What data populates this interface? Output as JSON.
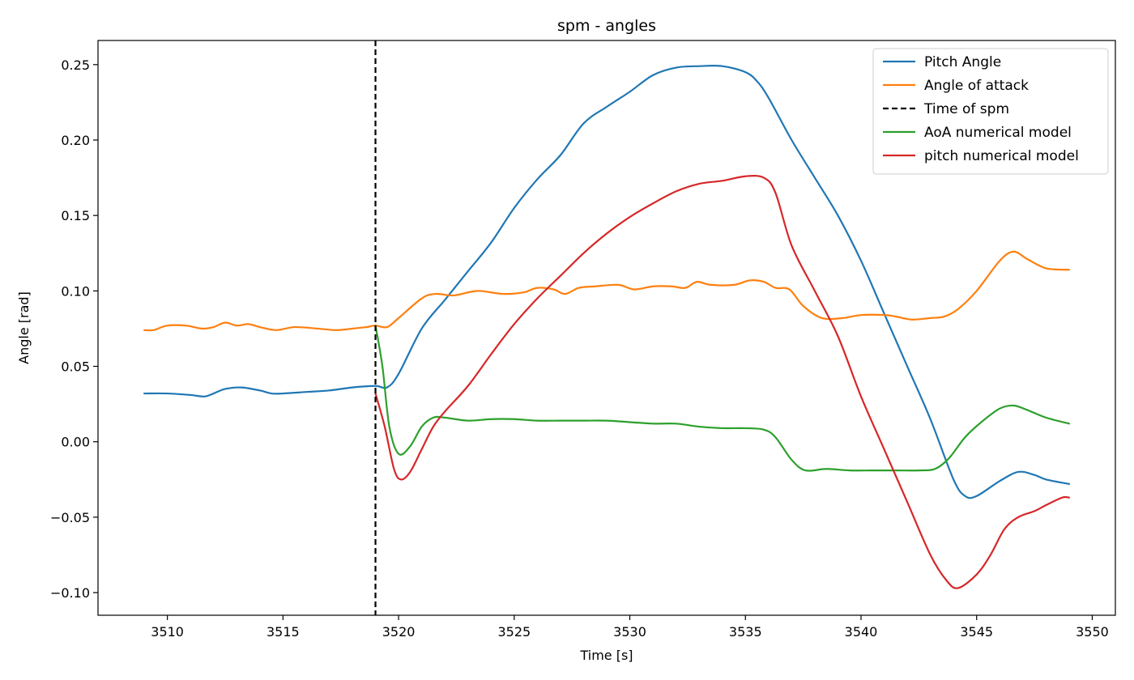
{
  "chart_data": {
    "type": "line",
    "title": "spm - angles",
    "xlabel": "Time [s]",
    "ylabel": "Angle [rad]",
    "xlim": [
      3507,
      3551
    ],
    "ylim": [
      -0.115,
      0.266
    ],
    "xticks": [
      3510,
      3515,
      3520,
      3525,
      3530,
      3535,
      3540,
      3545,
      3550
    ],
    "yticks": [
      -0.1,
      -0.05,
      0.0,
      0.05,
      0.1,
      0.15,
      0.2,
      0.25
    ],
    "xtick_labels": [
      "3510",
      "3515",
      "3520",
      "3525",
      "3530",
      "3535",
      "3540",
      "3545",
      "3550"
    ],
    "ytick_labels": [
      "−0.10",
      "−0.05",
      "0.00",
      "0.05",
      "0.10",
      "0.15",
      "0.20",
      "0.25"
    ],
    "grid": false,
    "legend_position": "top-right",
    "vline": {
      "name": "Time of spm",
      "x": 3519.0,
      "color": "#000000",
      "style": "dashed"
    },
    "series": [
      {
        "name": "Pitch Angle",
        "color": "#1f77b4",
        "points": [
          [
            3509.0,
            0.032
          ],
          [
            3510.0,
            0.032
          ],
          [
            3511.0,
            0.031
          ],
          [
            3511.6,
            0.03
          ],
          [
            3512.0,
            0.032
          ],
          [
            3512.5,
            0.035
          ],
          [
            3513.2,
            0.036
          ],
          [
            3514.0,
            0.034
          ],
          [
            3514.5,
            0.032
          ],
          [
            3515.0,
            0.032
          ],
          [
            3516.0,
            0.033
          ],
          [
            3517.0,
            0.034
          ],
          [
            3518.0,
            0.036
          ],
          [
            3519.0,
            0.037
          ],
          [
            3519.5,
            0.036
          ],
          [
            3520.0,
            0.045
          ],
          [
            3521.0,
            0.075
          ],
          [
            3522.0,
            0.094
          ],
          [
            3523.0,
            0.113
          ],
          [
            3524.0,
            0.132
          ],
          [
            3525.0,
            0.155
          ],
          [
            3526.0,
            0.174
          ],
          [
            3527.0,
            0.19
          ],
          [
            3528.0,
            0.211
          ],
          [
            3529.0,
            0.222
          ],
          [
            3530.0,
            0.232
          ],
          [
            3531.0,
            0.243
          ],
          [
            3532.0,
            0.248
          ],
          [
            3533.0,
            0.249
          ],
          [
            3534.0,
            0.249
          ],
          [
            3535.0,
            0.245
          ],
          [
            3535.5,
            0.239
          ],
          [
            3536.0,
            0.228
          ],
          [
            3537.0,
            0.2
          ],
          [
            3538.0,
            0.175
          ],
          [
            3539.0,
            0.15
          ],
          [
            3540.0,
            0.12
          ],
          [
            3541.0,
            0.085
          ],
          [
            3542.0,
            0.05
          ],
          [
            3543.0,
            0.015
          ],
          [
            3544.0,
            -0.025
          ],
          [
            3544.5,
            -0.036
          ],
          [
            3545.0,
            -0.036
          ],
          [
            3546.0,
            -0.026
          ],
          [
            3546.8,
            -0.02
          ],
          [
            3547.5,
            -0.022
          ],
          [
            3548.0,
            -0.025
          ],
          [
            3549.0,
            -0.028
          ]
        ]
      },
      {
        "name": "Angle of attack",
        "color": "#ff7f0e",
        "points": [
          [
            3509.0,
            0.074
          ],
          [
            3509.4,
            0.074
          ],
          [
            3510.0,
            0.077
          ],
          [
            3510.8,
            0.077
          ],
          [
            3511.5,
            0.075
          ],
          [
            3512.0,
            0.076
          ],
          [
            3512.5,
            0.079
          ],
          [
            3513.0,
            0.077
          ],
          [
            3513.5,
            0.078
          ],
          [
            3514.0,
            0.076
          ],
          [
            3514.7,
            0.074
          ],
          [
            3515.5,
            0.076
          ],
          [
            3516.5,
            0.075
          ],
          [
            3517.3,
            0.074
          ],
          [
            3518.0,
            0.075
          ],
          [
            3518.6,
            0.076
          ],
          [
            3519.0,
            0.077
          ],
          [
            3519.5,
            0.076
          ],
          [
            3520.0,
            0.082
          ],
          [
            3521.0,
            0.095
          ],
          [
            3521.6,
            0.098
          ],
          [
            3522.4,
            0.097
          ],
          [
            3523.4,
            0.1
          ],
          [
            3524.5,
            0.098
          ],
          [
            3525.4,
            0.099
          ],
          [
            3526.0,
            0.102
          ],
          [
            3526.7,
            0.101
          ],
          [
            3527.2,
            0.098
          ],
          [
            3527.8,
            0.102
          ],
          [
            3528.5,
            0.103
          ],
          [
            3529.5,
            0.104
          ],
          [
            3530.2,
            0.101
          ],
          [
            3531.0,
            0.103
          ],
          [
            3531.8,
            0.103
          ],
          [
            3532.4,
            0.102
          ],
          [
            3532.9,
            0.106
          ],
          [
            3533.5,
            0.104
          ],
          [
            3534.5,
            0.104
          ],
          [
            3535.2,
            0.107
          ],
          [
            3535.8,
            0.106
          ],
          [
            3536.3,
            0.102
          ],
          [
            3536.9,
            0.101
          ],
          [
            3537.5,
            0.09
          ],
          [
            3538.3,
            0.082
          ],
          [
            3539.2,
            0.082
          ],
          [
            3540.0,
            0.084
          ],
          [
            3541.0,
            0.084
          ],
          [
            3541.5,
            0.083
          ],
          [
            3542.2,
            0.081
          ],
          [
            3543.0,
            0.082
          ],
          [
            3543.6,
            0.083
          ],
          [
            3544.2,
            0.088
          ],
          [
            3545.0,
            0.1
          ],
          [
            3546.0,
            0.12
          ],
          [
            3546.6,
            0.126
          ],
          [
            3547.2,
            0.121
          ],
          [
            3548.0,
            0.115
          ],
          [
            3549.0,
            0.114
          ]
        ]
      },
      {
        "name": "AoA numerical model",
        "color": "#2ca02c",
        "points": [
          [
            3519.0,
            0.077
          ],
          [
            3519.3,
            0.05
          ],
          [
            3519.6,
            0.01
          ],
          [
            3520.0,
            -0.008
          ],
          [
            3520.5,
            -0.003
          ],
          [
            3521.0,
            0.01
          ],
          [
            3521.5,
            0.016
          ],
          [
            3522.0,
            0.016
          ],
          [
            3523.0,
            0.014
          ],
          [
            3524.0,
            0.015
          ],
          [
            3525.0,
            0.015
          ],
          [
            3526.0,
            0.014
          ],
          [
            3527.0,
            0.014
          ],
          [
            3528.0,
            0.014
          ],
          [
            3529.0,
            0.014
          ],
          [
            3530.0,
            0.013
          ],
          [
            3531.0,
            0.012
          ],
          [
            3532.0,
            0.012
          ],
          [
            3533.0,
            0.01
          ],
          [
            3534.0,
            0.009
          ],
          [
            3535.0,
            0.009
          ],
          [
            3535.8,
            0.008
          ],
          [
            3536.3,
            0.003
          ],
          [
            3537.0,
            -0.012
          ],
          [
            3537.6,
            -0.019
          ],
          [
            3538.5,
            -0.018
          ],
          [
            3539.5,
            -0.019
          ],
          [
            3540.5,
            -0.019
          ],
          [
            3541.5,
            -0.019
          ],
          [
            3542.5,
            -0.019
          ],
          [
            3543.2,
            -0.018
          ],
          [
            3543.8,
            -0.011
          ],
          [
            3544.5,
            0.003
          ],
          [
            3545.2,
            0.013
          ],
          [
            3546.0,
            0.022
          ],
          [
            3546.6,
            0.024
          ],
          [
            3547.2,
            0.021
          ],
          [
            3548.0,
            0.016
          ],
          [
            3549.0,
            0.012
          ]
        ]
      },
      {
        "name": "pitch numerical model",
        "color": "#d62728",
        "points": [
          [
            3519.0,
            0.032
          ],
          [
            3519.4,
            0.01
          ],
          [
            3519.8,
            -0.018
          ],
          [
            3520.1,
            -0.025
          ],
          [
            3520.5,
            -0.02
          ],
          [
            3521.0,
            -0.005
          ],
          [
            3521.5,
            0.01
          ],
          [
            3522.0,
            0.02
          ],
          [
            3523.0,
            0.037
          ],
          [
            3524.0,
            0.058
          ],
          [
            3525.0,
            0.078
          ],
          [
            3526.0,
            0.095
          ],
          [
            3527.0,
            0.11
          ],
          [
            3528.0,
            0.125
          ],
          [
            3529.0,
            0.138
          ],
          [
            3530.0,
            0.149
          ],
          [
            3531.0,
            0.158
          ],
          [
            3532.0,
            0.166
          ],
          [
            3533.0,
            0.171
          ],
          [
            3534.0,
            0.173
          ],
          [
            3535.0,
            0.176
          ],
          [
            3535.8,
            0.175
          ],
          [
            3536.3,
            0.165
          ],
          [
            3537.0,
            0.13
          ],
          [
            3538.0,
            0.1
          ],
          [
            3539.0,
            0.07
          ],
          [
            3540.0,
            0.03
          ],
          [
            3541.0,
            -0.005
          ],
          [
            3542.0,
            -0.04
          ],
          [
            3543.0,
            -0.075
          ],
          [
            3543.7,
            -0.092
          ],
          [
            3544.2,
            -0.097
          ],
          [
            3545.0,
            -0.088
          ],
          [
            3545.6,
            -0.075
          ],
          [
            3546.2,
            -0.058
          ],
          [
            3546.8,
            -0.05
          ],
          [
            3547.5,
            -0.046
          ],
          [
            3548.0,
            -0.042
          ],
          [
            3548.7,
            -0.037
          ],
          [
            3549.0,
            -0.037
          ]
        ]
      }
    ]
  }
}
